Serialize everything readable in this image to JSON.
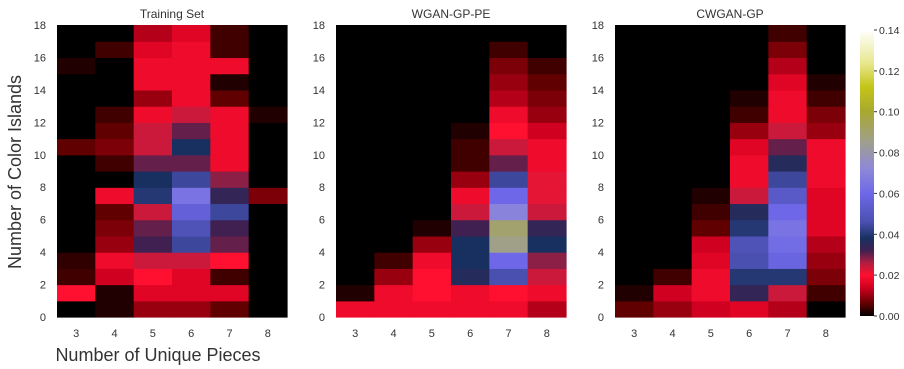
{
  "figure": {
    "ylabel": "Number of Color Islands",
    "xlabel": "Number of Unique Pieces"
  },
  "chart_data": [
    {
      "type": "heatmap",
      "title": "Training Set",
      "x_categories": [
        "3",
        "4",
        "5",
        "6",
        "7",
        "8"
      ],
      "y_ticks": [
        "0",
        "2",
        "4",
        "6",
        "8",
        "10",
        "12",
        "14",
        "16",
        "18"
      ],
      "xlim": [
        2.5,
        8.5
      ],
      "ylim": [
        0,
        18
      ],
      "cell_height": 1,
      "grid": false,
      "values": [
        [
          0.0,
          0.002,
          0.01,
          0.01,
          0.006,
          0.0
        ],
        [
          0.02,
          0.002,
          0.016,
          0.016,
          0.016,
          0.0
        ],
        [
          0.004,
          0.014,
          0.02,
          0.016,
          0.004,
          0.0
        ],
        [
          0.003,
          0.018,
          0.024,
          0.024,
          0.02,
          0.0
        ],
        [
          0.0,
          0.01,
          0.032,
          0.044,
          0.03,
          0.0
        ],
        [
          0.0,
          0.008,
          0.03,
          0.048,
          0.032,
          0.0
        ],
        [
          0.0,
          0.006,
          0.024,
          0.056,
          0.044,
          0.0
        ],
        [
          0.0,
          0.018,
          0.04,
          0.064,
          0.034,
          0.008
        ],
        [
          0.0,
          0.0,
          0.038,
          0.044,
          0.028,
          0.0
        ],
        [
          0.0,
          0.004,
          0.03,
          0.03,
          0.018,
          0.0
        ],
        [
          0.006,
          0.008,
          0.024,
          0.038,
          0.018,
          0.0
        ],
        [
          0.0,
          0.006,
          0.024,
          0.03,
          0.018,
          0.0
        ],
        [
          0.0,
          0.004,
          0.018,
          0.024,
          0.018,
          0.002
        ],
        [
          0.0,
          0.0,
          0.01,
          0.018,
          0.006,
          0.0
        ],
        [
          0.0,
          0.0,
          0.018,
          0.018,
          0.002,
          0.0
        ],
        [
          0.002,
          0.0,
          0.018,
          0.018,
          0.018,
          0.0
        ],
        [
          0.0,
          0.004,
          0.016,
          0.018,
          0.004,
          0.0
        ],
        [
          0.0,
          0.0,
          0.012,
          0.016,
          0.004,
          0.0
        ]
      ]
    },
    {
      "type": "heatmap",
      "title": "WGAN-GP-PE",
      "x_categories": [
        "3",
        "4",
        "5",
        "6",
        "7",
        "8"
      ],
      "y_ticks": [
        "0",
        "2",
        "4",
        "6",
        "8",
        "10",
        "12",
        "14",
        "16",
        "18"
      ],
      "xlim": [
        2.5,
        8.5
      ],
      "ylim": [
        0,
        18
      ],
      "cell_height": 1,
      "grid": false,
      "values": [
        [
          0.018,
          0.018,
          0.018,
          0.018,
          0.018,
          0.012
        ],
        [
          0.002,
          0.018,
          0.02,
          0.018,
          0.02,
          0.018
        ],
        [
          0.0,
          0.01,
          0.02,
          0.036,
          0.046,
          0.024
        ],
        [
          0.0,
          0.004,
          0.018,
          0.038,
          0.06,
          0.028
        ],
        [
          0.0,
          0.0,
          0.01,
          0.038,
          0.086,
          0.038
        ],
        [
          0.0,
          0.0,
          0.002,
          0.032,
          0.09,
          0.034
        ],
        [
          0.0,
          0.0,
          0.0,
          0.024,
          0.07,
          0.024
        ],
        [
          0.0,
          0.0,
          0.0,
          0.018,
          0.06,
          0.022
        ],
        [
          0.0,
          0.0,
          0.0,
          0.01,
          0.044,
          0.022
        ],
        [
          0.0,
          0.0,
          0.0,
          0.004,
          0.03,
          0.018
        ],
        [
          0.0,
          0.0,
          0.0,
          0.004,
          0.024,
          0.018
        ],
        [
          0.0,
          0.0,
          0.0,
          0.002,
          0.02,
          0.014
        ],
        [
          0.0,
          0.0,
          0.0,
          0.0,
          0.018,
          0.01
        ],
        [
          0.0,
          0.0,
          0.0,
          0.0,
          0.012,
          0.008
        ],
        [
          0.0,
          0.0,
          0.0,
          0.0,
          0.01,
          0.006
        ],
        [
          0.0,
          0.0,
          0.0,
          0.0,
          0.008,
          0.004
        ],
        [
          0.0,
          0.0,
          0.0,
          0.0,
          0.004,
          0.0
        ],
        [
          0.0,
          0.0,
          0.0,
          0.0,
          0.0,
          0.0
        ]
      ]
    },
    {
      "type": "heatmap",
      "title": "CWGAN-GP",
      "x_categories": [
        "3",
        "4",
        "5",
        "6",
        "7",
        "8"
      ],
      "y_ticks": [
        "0",
        "2",
        "4",
        "6",
        "8",
        "10",
        "12",
        "14",
        "16",
        "18"
      ],
      "xlim": [
        2.5,
        8.5
      ],
      "ylim": [
        0,
        18
      ],
      "cell_height": 1,
      "grid": false,
      "values": [
        [
          0.006,
          0.01,
          0.014,
          0.016,
          0.012,
          0.0
        ],
        [
          0.002,
          0.014,
          0.018,
          0.034,
          0.024,
          0.004
        ],
        [
          0.0,
          0.004,
          0.018,
          0.04,
          0.04,
          0.008
        ],
        [
          0.0,
          0.0,
          0.016,
          0.046,
          0.058,
          0.01
        ],
        [
          0.0,
          0.0,
          0.014,
          0.048,
          0.062,
          0.012
        ],
        [
          0.0,
          0.0,
          0.006,
          0.04,
          0.064,
          0.016
        ],
        [
          0.0,
          0.0,
          0.004,
          0.036,
          0.06,
          0.016
        ],
        [
          0.0,
          0.0,
          0.002,
          0.024,
          0.052,
          0.016
        ],
        [
          0.0,
          0.0,
          0.0,
          0.018,
          0.044,
          0.018
        ],
        [
          0.0,
          0.0,
          0.0,
          0.018,
          0.036,
          0.018
        ],
        [
          0.0,
          0.0,
          0.0,
          0.016,
          0.03,
          0.018
        ],
        [
          0.0,
          0.0,
          0.0,
          0.01,
          0.024,
          0.01
        ],
        [
          0.0,
          0.0,
          0.0,
          0.004,
          0.018,
          0.008
        ],
        [
          0.0,
          0.0,
          0.0,
          0.002,
          0.018,
          0.004
        ],
        [
          0.0,
          0.0,
          0.0,
          0.0,
          0.016,
          0.002
        ],
        [
          0.0,
          0.0,
          0.0,
          0.0,
          0.012,
          0.0
        ],
        [
          0.0,
          0.0,
          0.0,
          0.0,
          0.008,
          0.0
        ],
        [
          0.0,
          0.0,
          0.0,
          0.0,
          0.004,
          0.0
        ]
      ]
    }
  ],
  "colorbar": {
    "min": 0.0,
    "max": 0.14,
    "ticks": [
      "0.00",
      "0.02",
      "0.04",
      "0.06",
      "0.08",
      "0.10",
      "0.12",
      "0.14"
    ],
    "stops": [
      {
        "v": 0.0,
        "color": "#000000"
      },
      {
        "v": 0.006,
        "color": "#600000"
      },
      {
        "v": 0.014,
        "color": "#d00020"
      },
      {
        "v": 0.02,
        "color": "#ff1030"
      },
      {
        "v": 0.026,
        "color": "#b01e40"
      },
      {
        "v": 0.032,
        "color": "#402050"
      },
      {
        "v": 0.038,
        "color": "#183060"
      },
      {
        "v": 0.046,
        "color": "#4a50b0"
      },
      {
        "v": 0.06,
        "color": "#6e68e8"
      },
      {
        "v": 0.072,
        "color": "#8e88d8"
      },
      {
        "v": 0.086,
        "color": "#a0a088"
      },
      {
        "v": 0.1,
        "color": "#a8a830"
      },
      {
        "v": 0.112,
        "color": "#c4c418"
      },
      {
        "v": 0.124,
        "color": "#e8e890"
      },
      {
        "v": 0.14,
        "color": "#ffffff"
      }
    ]
  }
}
